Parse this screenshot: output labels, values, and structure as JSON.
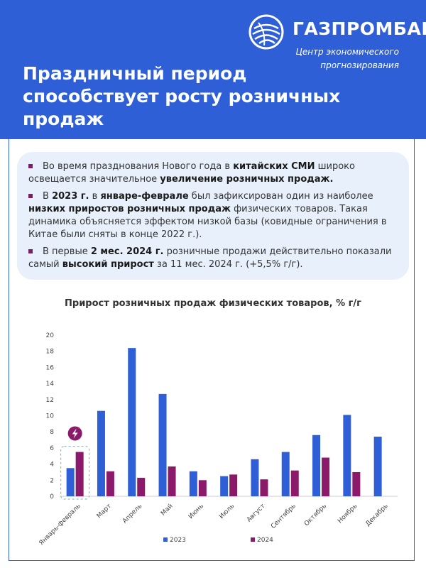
{
  "header": {
    "brand": "ГАЗПРОМБАНК",
    "tagline_line1": "Центр экономического",
    "tagline_line2": "прогнозирования",
    "title_line1": "Праздничный период",
    "title_line2": "способствует росту розничных",
    "title_line3": "продаж",
    "logo_icon": "gazprombank-globe-logo",
    "accent_color": "#2f5fd6"
  },
  "bullets": [
    {
      "parts": [
        {
          "t": "Во время празднования Нового года в ",
          "b": false
        },
        {
          "t": "китайских СМИ",
          "b": true
        },
        {
          "t": " широко освещается значительное ",
          "b": false
        },
        {
          "t": "увеличение розничных продаж.",
          "b": true
        }
      ]
    },
    {
      "parts": [
        {
          "t": "В ",
          "b": false
        },
        {
          "t": "2023 г.",
          "b": true
        },
        {
          "t": " в ",
          "b": false
        },
        {
          "t": "январе-феврале",
          "b": true
        },
        {
          "t": " был зафиксирован один из наиболее ",
          "b": false
        },
        {
          "t": "низких приростов розничных продаж",
          "b": true
        },
        {
          "t": " физических товаров. Такая динамика объясняется эффектом низкой базы (ковидные ограничения в Китае были сняты в конце 2022 г.).",
          "b": false
        }
      ]
    },
    {
      "parts": [
        {
          "t": "В первые ",
          "b": false
        },
        {
          "t": "2 мес. 2024 г.",
          "b": true
        },
        {
          "t": " розничные продажи действительно показали самый ",
          "b": false
        },
        {
          "t": "высокий прирост",
          "b": true
        },
        {
          "t": " за 11 мес. 2024 г. (+5,5% г/г).",
          "b": false
        }
      ]
    }
  ],
  "chart_data": {
    "type": "bar",
    "title": "Прирост розничных продаж физических товаров, % г/г",
    "categories": [
      "Январь-февраль",
      "Март",
      "Апрель",
      "Май",
      "Июнь",
      "Июль",
      "Август",
      "Сентябрь",
      "Октябрь",
      "Ноябрь",
      "Декабрь"
    ],
    "series": [
      {
        "name": "2023",
        "color": "#2f5fd6",
        "values": [
          3.5,
          10.6,
          18.4,
          12.7,
          3.1,
          2.5,
          4.6,
          5.5,
          7.6,
          10.1,
          7.4
        ]
      },
      {
        "name": "2024",
        "color": "#8b1a6b",
        "values": [
          5.5,
          3.1,
          2.3,
          3.7,
          2.0,
          2.7,
          2.1,
          3.2,
          4.8,
          3.0,
          null
        ]
      }
    ],
    "ylim": [
      0,
      20
    ],
    "yticks": [
      "0",
      "2",
      "4",
      "6",
      "8",
      "10",
      "12",
      "14",
      "16",
      "18",
      "20"
    ],
    "grid": false,
    "legend": "bottom",
    "highlight_category": "Январь-февраль",
    "highlight_icon": "lightning-bolt-icon",
    "highlight_color": "#8b1a6b"
  }
}
